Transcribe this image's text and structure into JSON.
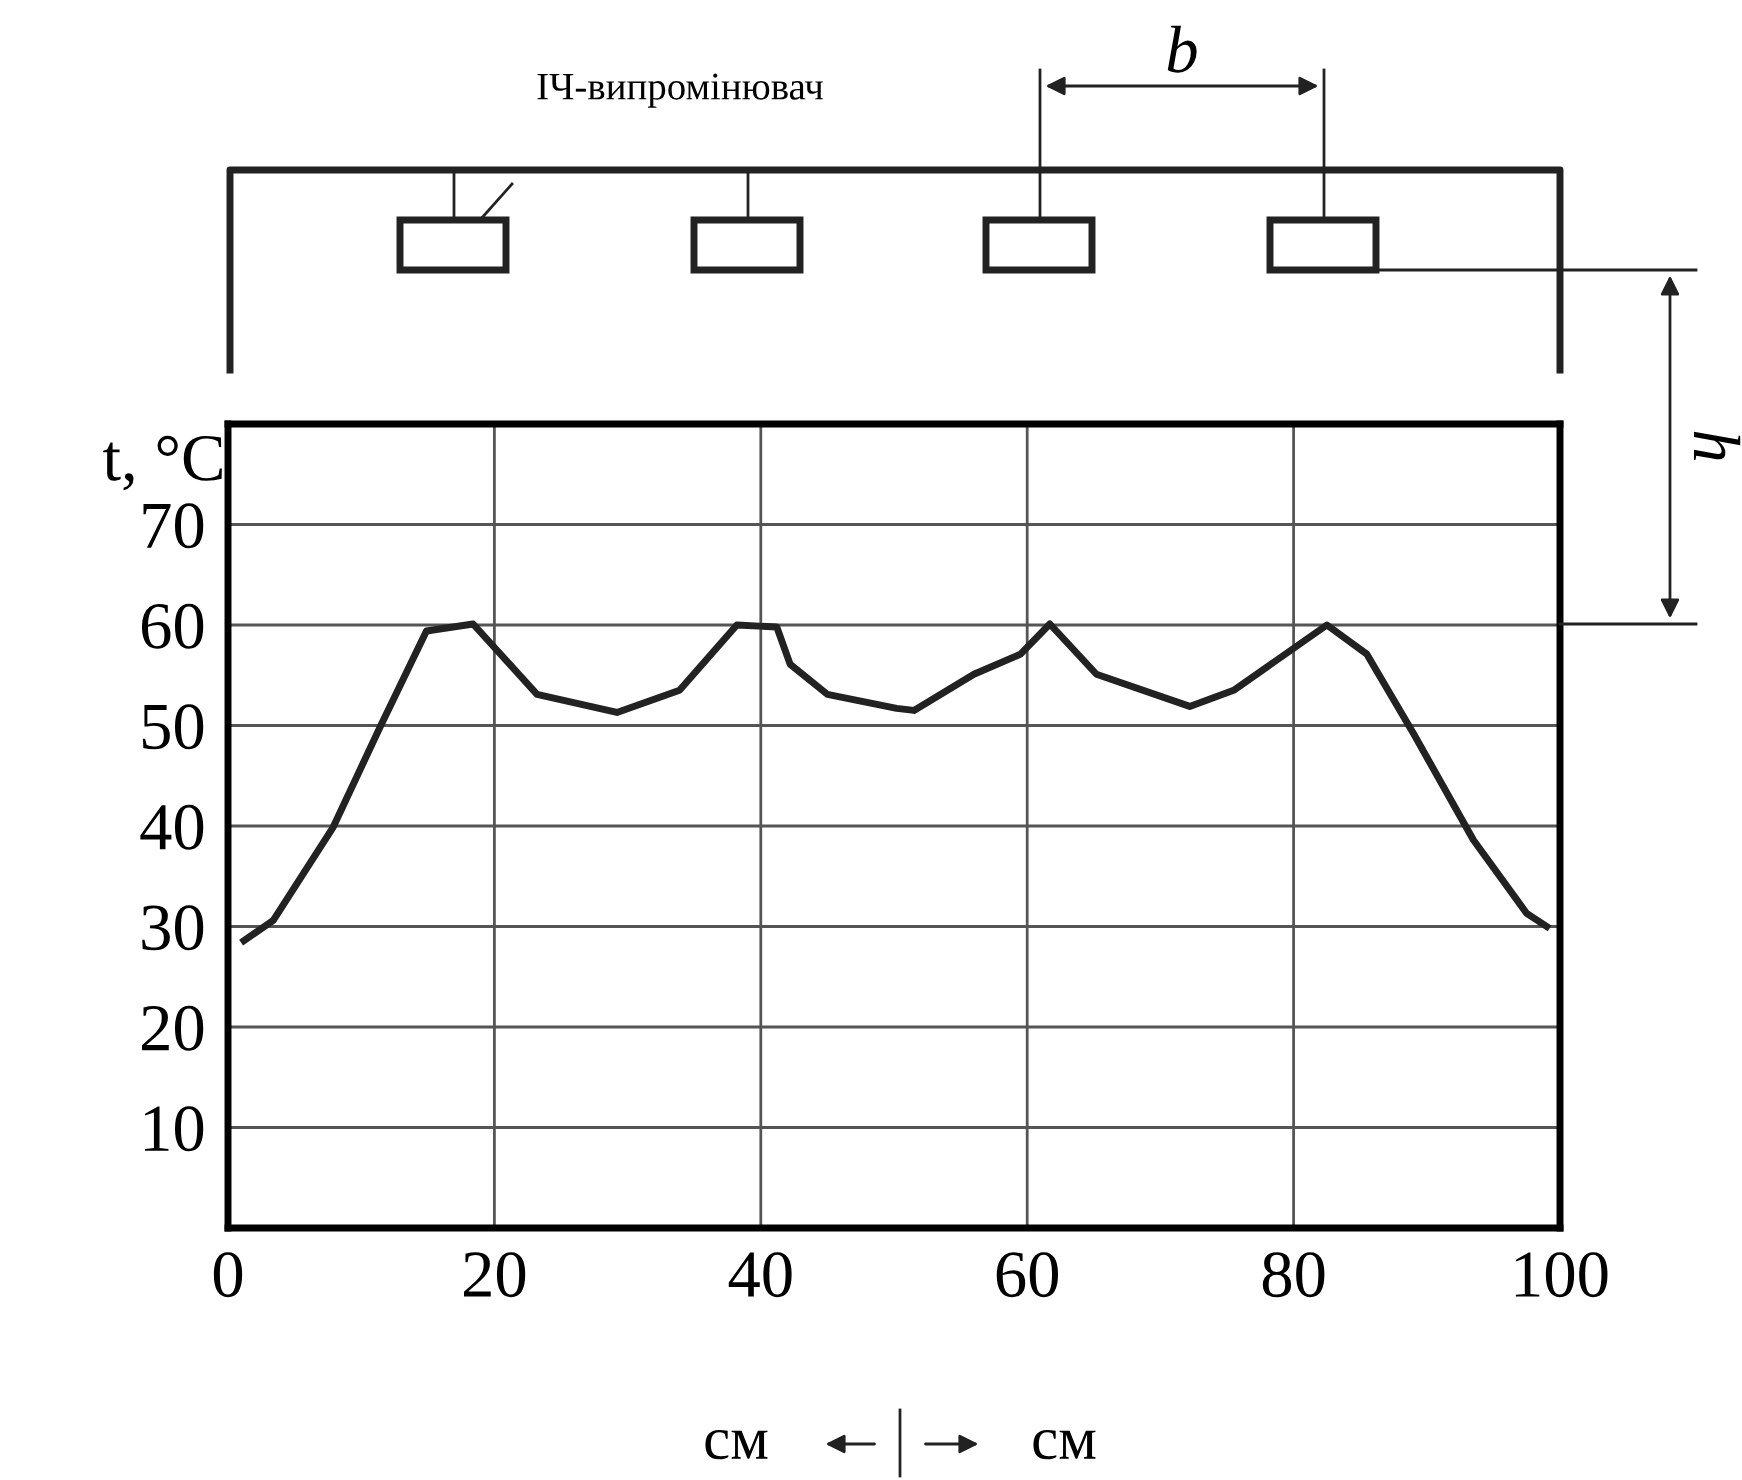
{
  "chart_data": {
    "type": "line",
    "ylabel": "t, °C",
    "x": [
      1.2,
      3.4,
      7.9,
      11.4,
      14.9,
      18.4,
      23.2,
      29.2,
      33.9,
      38.2,
      41.2,
      42.2,
      45.0,
      50.2,
      51.5,
      56.0,
      59.5,
      61.7,
      65.2,
      72.2,
      75.5,
      82.5,
      85.5,
      89.0,
      93.5,
      97.5,
      99.0
    ],
    "series": [
      {
        "color": "#222222",
        "values": [
          28.6,
          30.6,
          39.9,
          49.8,
          59.4,
          60.1,
          53.1,
          51.3,
          53.5,
          60.0,
          59.8,
          56.1,
          53.1,
          51.7,
          51.5,
          55.1,
          57.1,
          60.1,
          55.1,
          51.9,
          53.5,
          60.0,
          57.1,
          49.2,
          38.6,
          31.3,
          30.0
        ]
      }
    ],
    "xlim": [
      0,
      100
    ],
    "xticks": [
      0,
      20,
      40,
      60,
      80,
      100
    ],
    "ylim": [
      0,
      80
    ],
    "yticks": [
      10,
      20,
      30,
      40,
      50,
      60,
      70
    ],
    "grid": true,
    "marker": "none",
    "line_style": "solid",
    "annotations": [
      "ІЧ-випромінювач",
      "b",
      "h",
      "см",
      "см"
    ]
  }
}
